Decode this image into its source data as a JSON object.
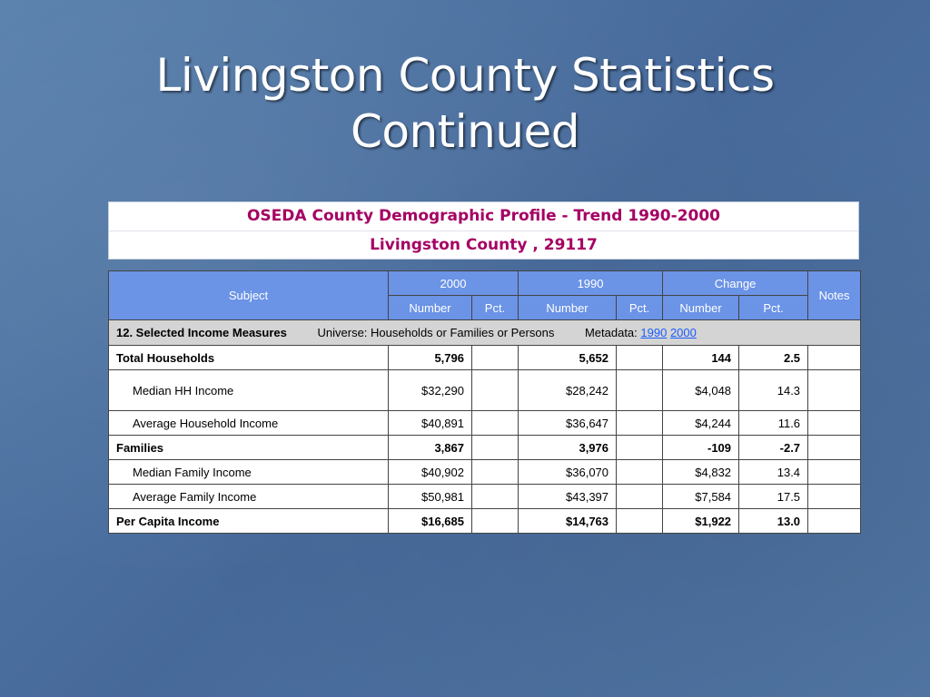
{
  "slide": {
    "title_line1": "Livingston County Statistics",
    "title_line2": "Continued"
  },
  "header": {
    "line1": "OSEDA County Demographic Profile - Trend 1990-2000",
    "line2": "Livingston County , 29117"
  },
  "table": {
    "col_subject": "Subject",
    "col_2000": "2000",
    "col_1990": "1990",
    "col_change": "Change",
    "col_notes": "Notes",
    "sub_number": "Number",
    "sub_pct": "Pct.",
    "section": {
      "title": "12. Selected Income Measures",
      "universe": "Universe: Households or Families or Persons",
      "metadata_label": "Metadata:",
      "link_1990": "1990",
      "link_2000": "2000"
    },
    "rows": [
      {
        "label": "Total Households",
        "n2000": "5,796",
        "n1990": "5,652",
        "change": "144",
        "pct": "2.5"
      },
      {
        "label": "Median HH Income",
        "n2000": "$32,290",
        "n1990": "$28,242",
        "change": "$4,048",
        "pct": "14.3"
      },
      {
        "label": "Average Household Income",
        "n2000": "$40,891",
        "n1990": "$36,647",
        "change": "$4,244",
        "pct": "11.6"
      },
      {
        "label": "Families",
        "n2000": "3,867",
        "n1990": "3,976",
        "change": "-109",
        "pct": "-2.7"
      },
      {
        "label": "Median Family Income",
        "n2000": "$40,902",
        "n1990": "$36,070",
        "change": "$4,832",
        "pct": "13.4"
      },
      {
        "label": "Average Family Income",
        "n2000": "$50,981",
        "n1990": "$43,397",
        "change": "$7,584",
        "pct": "17.5"
      },
      {
        "label": "Per Capita Income",
        "n2000": "$16,685",
        "n1990": "$14,763",
        "change": "$1,922",
        "pct": "13.0"
      }
    ]
  }
}
